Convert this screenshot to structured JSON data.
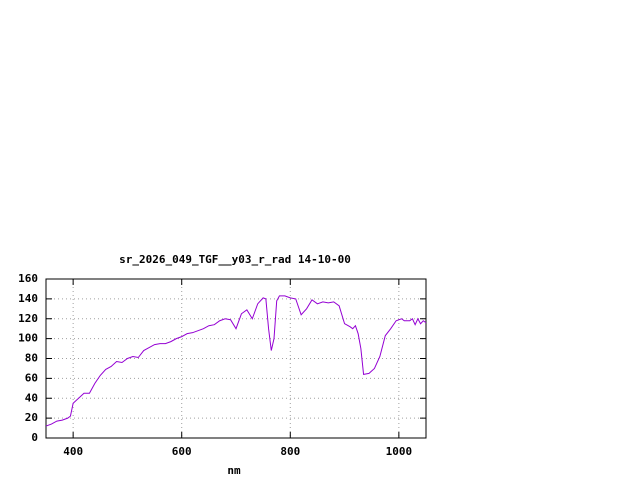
{
  "chart_data": {
    "type": "line",
    "title": "sr_2026_049_TGF__y03_r_rad 14-10-00",
    "x_label": "nm",
    "x": [
      350,
      360,
      370,
      380,
      390,
      395,
      400,
      410,
      420,
      430,
      440,
      450,
      460,
      470,
      480,
      490,
      500,
      510,
      520,
      530,
      540,
      550,
      560,
      570,
      580,
      590,
      600,
      610,
      620,
      630,
      640,
      650,
      660,
      670,
      680,
      690,
      700,
      710,
      720,
      730,
      740,
      750,
      755,
      760,
      765,
      770,
      775,
      780,
      790,
      800,
      810,
      820,
      830,
      840,
      850,
      860,
      870,
      880,
      890,
      900,
      910,
      915,
      920,
      925,
      930,
      935,
      945,
      955,
      965,
      975,
      985,
      995,
      1005,
      1010,
      1020,
      1025,
      1030,
      1035,
      1040,
      1045,
      1050
    ],
    "series": [
      {
        "color": "#9400d3",
        "values": [
          12,
          14,
          17,
          18,
          20,
          22,
          35,
          40,
          45,
          45,
          55,
          63,
          69,
          72,
          77,
          76,
          80,
          82,
          81,
          88,
          91,
          94,
          95,
          95,
          97,
          100,
          102,
          105,
          106,
          108,
          110,
          113,
          114,
          118,
          120,
          119,
          110,
          125,
          129,
          120,
          135,
          141,
          140,
          110,
          88,
          100,
          138,
          143,
          143,
          141,
          140,
          124,
          130,
          139,
          135,
          137,
          136,
          137,
          133,
          115,
          112,
          110,
          113,
          105,
          90,
          64,
          65,
          70,
          82,
          103,
          110,
          118,
          120,
          118,
          118,
          120,
          114,
          120,
          115,
          118,
          116
        ]
      }
    ],
    "xlim": [
      350,
      1050
    ],
    "ylim": [
      0,
      160
    ],
    "xticks": [
      400,
      600,
      800,
      1000
    ],
    "yticks": [
      0,
      20,
      40,
      60,
      80,
      100,
      120,
      140,
      160
    ],
    "grid": true
  }
}
